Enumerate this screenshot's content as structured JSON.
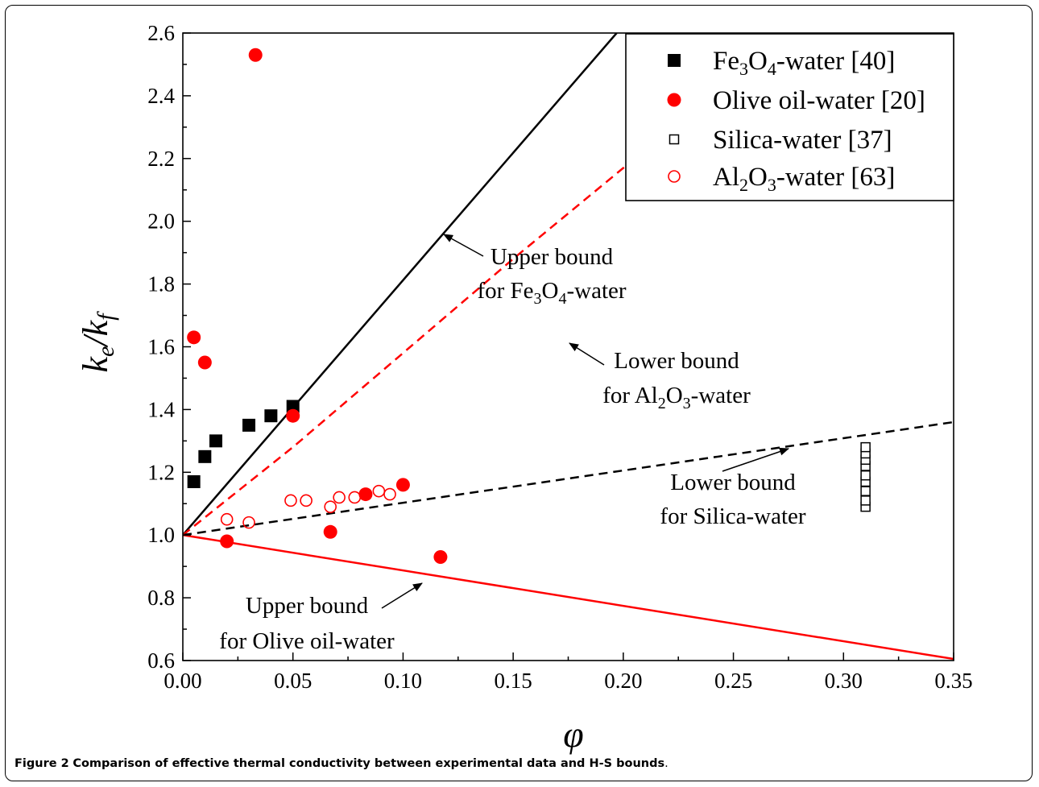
{
  "caption": {
    "label": "Figure 2",
    "text": "Comparison of effective thermal conductivity between experimental data and H-S bounds",
    "end": "."
  },
  "chart_data": {
    "type": "scatter",
    "xlabel": "φ",
    "ylabel": {
      "main": "k",
      "sub1": "e",
      "sep": "/k",
      "sub2": "f"
    },
    "xlim": [
      0,
      0.35
    ],
    "ylim": [
      0.6,
      2.6
    ],
    "xticks": [
      {
        "v": 0.0,
        "label": "0.00"
      },
      {
        "v": 0.05,
        "label": "0.05"
      },
      {
        "v": 0.1,
        "label": "0.10"
      },
      {
        "v": 0.15,
        "label": "0.15"
      },
      {
        "v": 0.2,
        "label": "0.20"
      },
      {
        "v": 0.25,
        "label": "0.25"
      },
      {
        "v": 0.3,
        "label": "0.30"
      },
      {
        "v": 0.35,
        "label": "0.35"
      }
    ],
    "yticks": [
      {
        "v": 0.6,
        "label": "0.6"
      },
      {
        "v": 0.8,
        "label": "0.8"
      },
      {
        "v": 1.0,
        "label": "1.0"
      },
      {
        "v": 1.2,
        "label": "1.2"
      },
      {
        "v": 1.4,
        "label": "1.4"
      },
      {
        "v": 1.6,
        "label": "1.6"
      },
      {
        "v": 1.8,
        "label": "1.8"
      },
      {
        "v": 2.0,
        "label": "2.0"
      },
      {
        "v": 2.2,
        "label": "2.2"
      },
      {
        "v": 2.4,
        "label": "2.4"
      },
      {
        "v": 2.6,
        "label": "2.6"
      }
    ],
    "grid": false,
    "legend_position": "top-right",
    "series": [
      {
        "id": "fe3o4",
        "legend": {
          "pre": "Fe",
          "s1": "3",
          "mid": "O",
          "s2": "4",
          "post": "-water [40]"
        },
        "marker": "square",
        "filled": true,
        "color": "#000000",
        "points": [
          [
            0.005,
            1.17
          ],
          [
            0.01,
            1.25
          ],
          [
            0.015,
            1.3
          ],
          [
            0.03,
            1.35
          ],
          [
            0.04,
            1.38
          ],
          [
            0.05,
            1.41
          ]
        ]
      },
      {
        "id": "olive",
        "legend": {
          "pre": "Olive oil-water [20]",
          "s1": "",
          "mid": "",
          "s2": "",
          "post": ""
        },
        "marker": "circle",
        "filled": true,
        "color": "#ff0000",
        "points": [
          [
            0.033,
            2.53
          ],
          [
            0.005,
            1.63
          ],
          [
            0.01,
            1.55
          ],
          [
            0.05,
            1.38
          ],
          [
            0.02,
            0.98
          ],
          [
            0.067,
            1.01
          ],
          [
            0.083,
            1.13
          ],
          [
            0.1,
            1.16
          ],
          [
            0.117,
            0.93
          ]
        ]
      },
      {
        "id": "silica",
        "legend": {
          "pre": "Silica-water [37]",
          "s1": "",
          "mid": "",
          "s2": "",
          "post": ""
        },
        "marker": "square",
        "filled": false,
        "color": "#000000",
        "points": [
          [
            0.31,
            1.09
          ],
          [
            0.31,
            1.11
          ],
          [
            0.31,
            1.14
          ],
          [
            0.31,
            1.17
          ],
          [
            0.31,
            1.19
          ],
          [
            0.31,
            1.22
          ],
          [
            0.31,
            1.24
          ],
          [
            0.31,
            1.26
          ],
          [
            0.31,
            1.28
          ]
        ]
      },
      {
        "id": "al2o3",
        "legend": {
          "pre": "Al",
          "s1": "2",
          "mid": "O",
          "s2": "3",
          "post": "-water [63]"
        },
        "marker": "circle",
        "filled": false,
        "color": "#ff0000",
        "points": [
          [
            0.02,
            1.05
          ],
          [
            0.03,
            1.04
          ],
          [
            0.049,
            1.11
          ],
          [
            0.056,
            1.11
          ],
          [
            0.067,
            1.09
          ],
          [
            0.071,
            1.12
          ],
          [
            0.078,
            1.12
          ],
          [
            0.089,
            1.14
          ],
          [
            0.094,
            1.13
          ]
        ]
      }
    ],
    "curves": [
      {
        "id": "upper-fe3o4",
        "style": "solid",
        "color": "#000000",
        "points": [
          [
            0,
            1.0
          ],
          [
            0.197,
            2.6
          ]
        ]
      },
      {
        "id": "lower-al2o3",
        "style": "dashed",
        "color": "#ff0000",
        "points": [
          [
            0,
            1.0
          ],
          [
            0.05,
            1.28
          ],
          [
            0.1,
            1.58
          ],
          [
            0.15,
            1.88
          ],
          [
            0.2,
            2.17
          ],
          [
            0.25,
            2.45
          ],
          [
            0.3,
            2.5
          ]
        ]
      },
      {
        "id": "lower-silica",
        "style": "dashed",
        "color": "#000000",
        "points": [
          [
            0,
            1.0
          ],
          [
            0.35,
            1.36
          ]
        ]
      },
      {
        "id": "upper-olive",
        "style": "solid",
        "color": "#ff0000",
        "points": [
          [
            0,
            1.0
          ],
          [
            0.35,
            0.605
          ]
        ]
      }
    ],
    "annotations": [
      {
        "id": "upper-fe3o4",
        "line1": "Upper bound",
        "line2": {
          "pre": "for Fe",
          "s1": "3",
          "mid": "O",
          "s2": "4",
          "post": "-water"
        }
      },
      {
        "id": "lower-al2o3",
        "line1": "Lower bound",
        "line2": {
          "pre": "for Al",
          "s1": "2",
          "mid": "O",
          "s2": "3",
          "post": "-water"
        }
      },
      {
        "id": "lower-silica",
        "line1": "Lower bound",
        "line2": {
          "pre": "for Silica-water",
          "s1": "",
          "mid": "",
          "s2": "",
          "post": ""
        }
      },
      {
        "id": "upper-olive",
        "line1": "Upper bound",
        "line2": {
          "pre": "for Olive oil-water",
          "s1": "",
          "mid": "",
          "s2": "",
          "post": ""
        }
      }
    ]
  }
}
